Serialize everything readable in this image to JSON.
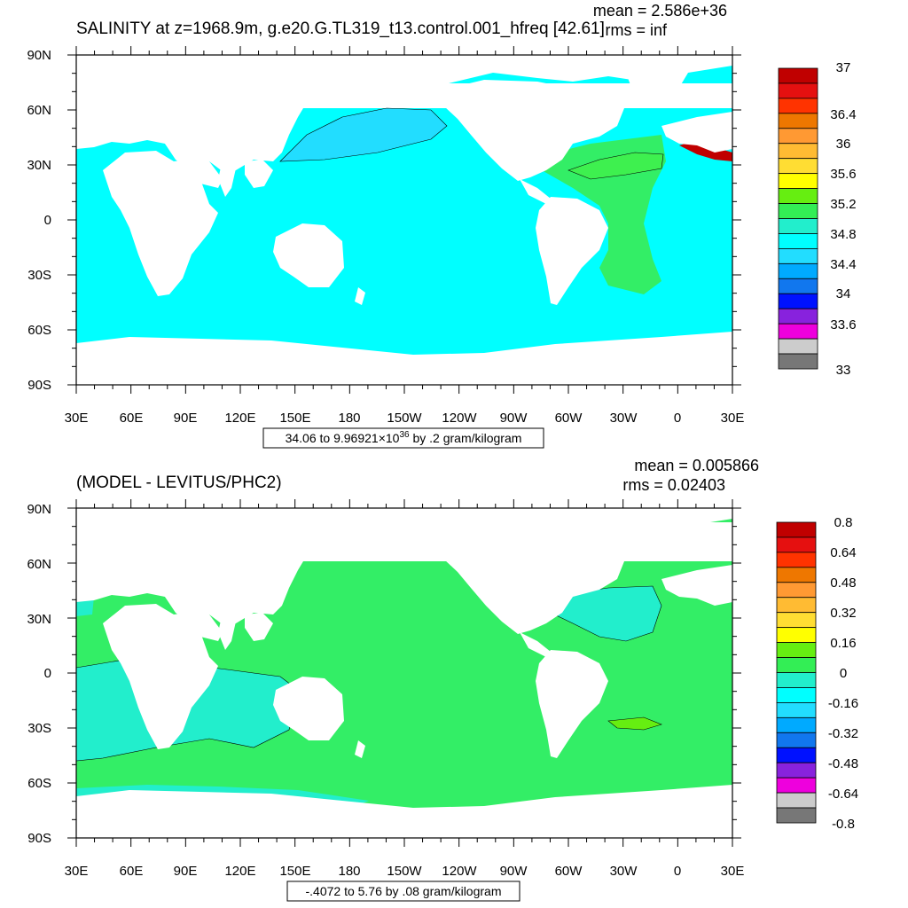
{
  "colors": {
    "ocean_light_cyan": "#00ffff",
    "ocean_mid_cyan": "#1ee6e6",
    "ocean_cyan_blue": "#00d8ff",
    "ocean_green": "#33ee66",
    "ocean_bright_green": "#3ef04f",
    "ocean_teal": "#22eecc",
    "land": "#ffffff",
    "contour": "#000000"
  },
  "panels": [
    {
      "id": "top",
      "title": "SALINITY at z=1968.9m, g.e20.G.TL319_t13.control.001_hfreq [42.61]",
      "mean_text": "mean = 2.586e+36",
      "rms_text": "rms = inf",
      "info_prefix": "34.06 to 9.96921",
      "info_times": "×10",
      "info_exp": "36",
      "info_suffix": " by .2 gram/kilogram",
      "x_ticks": [
        "30E",
        "60E",
        "90E",
        "120E",
        "150E",
        "180",
        "150W",
        "120W",
        "90W",
        "60W",
        "30W",
        "0",
        "30E"
      ],
      "y_ticks": [
        "90N",
        "60N",
        "30N",
        "0",
        "30S",
        "60S",
        "90S"
      ],
      "colorbar": {
        "labels": [
          "37",
          "36.4",
          "36",
          "35.6",
          "35.2",
          "34.8",
          "34.4",
          "34",
          "33.6",
          "33"
        ],
        "colors": [
          "#c00000",
          "#e51010",
          "#ff3300",
          "#ee7700",
          "#ff9933",
          "#ffbb33",
          "#ffdd33",
          "#ffff00",
          "#66ee11",
          "#33ee55",
          "#22eecc",
          "#00ffff",
          "#22ddff",
          "#00aaff",
          "#1177ee",
          "#0011ff",
          "#8822dd",
          "#ee00dd",
          "#cccccc",
          "#777777"
        ]
      }
    },
    {
      "id": "bottom",
      "title": "(MODEL - LEVITUS/PHC2)",
      "mean_text": "mean = 0.005866",
      "rms_text": "rms = 0.02403",
      "info_text": "-.4072 to 5.76 by .08 gram/kilogram",
      "x_ticks": [
        "30E",
        "60E",
        "90E",
        "120E",
        "150E",
        "180",
        "150W",
        "120W",
        "90W",
        "60W",
        "30W",
        "0",
        "30E"
      ],
      "y_ticks": [
        "90N",
        "60N",
        "30N",
        "0",
        "30S",
        "60S",
        "90S"
      ],
      "colorbar": {
        "labels": [
          "0.8",
          "0.64",
          "0.48",
          "0.32",
          "0.16",
          "0",
          "-0.16",
          "-0.32",
          "-0.48",
          "-0.64",
          "-0.8"
        ],
        "colors": [
          "#c00000",
          "#e51010",
          "#ff3300",
          "#ee7700",
          "#ff9933",
          "#ffbb33",
          "#ffdd33",
          "#ffff00",
          "#66ee11",
          "#33ee55",
          "#22eecc",
          "#00ffff",
          "#22ddff",
          "#00aaff",
          "#1177ee",
          "#0011ff",
          "#8822dd",
          "#ee00dd",
          "#cccccc",
          "#777777"
        ]
      }
    }
  ]
}
